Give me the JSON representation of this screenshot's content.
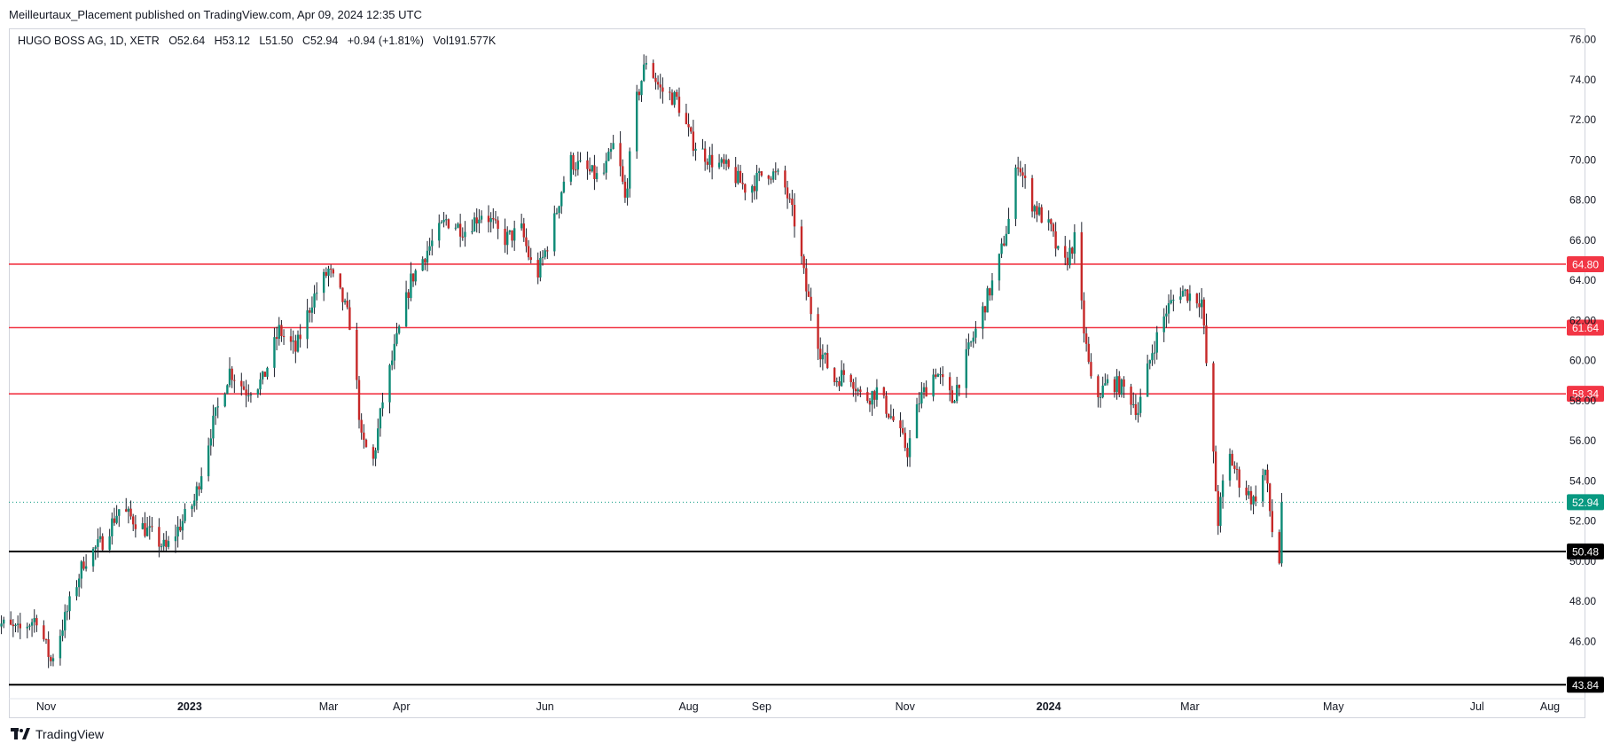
{
  "header": {
    "published": "Meilleurtaux_Placement published on TradingView.com, Apr 09, 2024 12:35 UTC"
  },
  "legend": {
    "symbol": "HUGO BOSS AG, 1D, XETR",
    "open": "O52.64",
    "high": "H53.12",
    "low": "L51.50",
    "close": "C52.94",
    "change": "+0.94 (+1.81%)",
    "volume": "Vol191.577K"
  },
  "footer": {
    "brand": "TradingView"
  },
  "colors": {
    "up": "#26a69a",
    "up_body": "#0c8a76",
    "down": "#ef5350",
    "down_body": "#c62828",
    "wick": "#1e222d",
    "level_line": "#f23645",
    "support_line": "#000000",
    "current_price": "#089981"
  },
  "chart_data": {
    "type": "candlestick",
    "symbol": "HUGO BOSS AG, 1D, XETR",
    "ylim": [
      43.5,
      76.2
    ],
    "yticks": [
      46,
      48,
      50,
      52,
      54,
      56,
      58,
      60,
      62,
      64,
      66,
      68,
      70,
      72,
      74,
      76
    ],
    "x_ticks": [
      {
        "label": "Nov",
        "date": "2022-11-01",
        "bold": false
      },
      {
        "label": "2023",
        "date": "2023-01-01",
        "bold": true
      },
      {
        "label": "Mar",
        "date": "2023-03-01",
        "bold": false
      },
      {
        "label": "Apr",
        "date": "2023-04-01",
        "bold": false
      },
      {
        "label": "Jun",
        "date": "2023-06-01",
        "bold": false
      },
      {
        "label": "Aug",
        "date": "2023-08-01",
        "bold": false
      },
      {
        "label": "Sep",
        "date": "2023-09-01",
        "bold": false
      },
      {
        "label": "Nov",
        "date": "2023-11-01",
        "bold": false
      },
      {
        "label": "2024",
        "date": "2024-01-01",
        "bold": true
      },
      {
        "label": "Mar",
        "date": "2024-03-01",
        "bold": false
      },
      {
        "label": "May",
        "date": "2024-05-01",
        "bold": false
      },
      {
        "label": "Jul",
        "date": "2024-07-01",
        "bold": false
      },
      {
        "label": "Aug",
        "date": "2024-08-01",
        "bold": false
      }
    ],
    "horizontal_levels": [
      {
        "value": 64.8,
        "label": "64.80",
        "kind": "resistance"
      },
      {
        "value": 61.64,
        "label": "61.64",
        "kind": "resistance"
      },
      {
        "value": 58.34,
        "label": "58.34",
        "kind": "resistance"
      },
      {
        "value": 50.48,
        "label": "50.48",
        "kind": "support"
      },
      {
        "value": 43.84,
        "label": "43.84",
        "kind": "support"
      }
    ],
    "current_price": {
      "value": 52.94,
      "label": "52.94"
    },
    "price_path": [
      [
        "2022-10-10",
        47.0
      ],
      [
        "2022-10-20",
        46.5
      ],
      [
        "2022-10-28",
        47.2
      ],
      [
        "2022-11-03",
        45.0
      ],
      [
        "2022-11-10",
        47.5
      ],
      [
        "2022-11-17",
        50.0
      ],
      [
        "2022-11-25",
        51.0
      ],
      [
        "2022-12-02",
        52.6
      ],
      [
        "2022-12-09",
        52.0
      ],
      [
        "2022-12-16",
        51.3
      ],
      [
        "2022-12-22",
        50.6
      ],
      [
        "2023-01-03",
        53.0
      ],
      [
        "2023-01-10",
        56.5
      ],
      [
        "2023-01-18",
        59.5
      ],
      [
        "2023-01-25",
        58.5
      ],
      [
        "2023-02-01",
        59.0
      ],
      [
        "2023-02-08",
        61.5
      ],
      [
        "2023-02-15",
        60.5
      ],
      [
        "2023-02-22",
        63.0
      ],
      [
        "2023-03-01",
        64.5
      ],
      [
        "2023-03-07",
        63.0
      ],
      [
        "2023-03-11",
        61.5
      ],
      [
        "2023-03-15",
        56.0
      ],
      [
        "2023-03-20",
        55.0
      ],
      [
        "2023-03-24",
        58.0
      ],
      [
        "2023-03-30",
        61.0
      ],
      [
        "2023-04-05",
        64.0
      ],
      [
        "2023-04-12",
        65.5
      ],
      [
        "2023-04-20",
        67.0
      ],
      [
        "2023-04-28",
        66.5
      ],
      [
        "2023-05-06",
        67.5
      ],
      [
        "2023-05-14",
        66.0
      ],
      [
        "2023-05-22",
        66.5
      ],
      [
        "2023-05-28",
        64.0
      ],
      [
        "2023-06-04",
        66.5
      ],
      [
        "2023-06-11",
        70.0
      ],
      [
        "2023-06-18",
        69.5
      ],
      [
        "2023-06-25",
        69.0
      ],
      [
        "2023-07-01",
        71.0
      ],
      [
        "2023-07-05",
        68.0
      ],
      [
        "2023-07-10",
        73.0
      ],
      [
        "2023-07-14",
        75.0
      ],
      [
        "2023-07-20",
        73.5
      ],
      [
        "2023-07-27",
        73.0
      ],
      [
        "2023-08-02",
        71.0
      ],
      [
        "2023-08-10",
        70.0
      ],
      [
        "2023-08-18",
        69.5
      ],
      [
        "2023-08-26",
        68.5
      ],
      [
        "2023-09-03",
        69.5
      ],
      [
        "2023-09-10",
        69.0
      ],
      [
        "2023-09-16",
        66.5
      ],
      [
        "2023-09-20",
        63.5
      ],
      [
        "2023-09-26",
        60.5
      ],
      [
        "2023-10-02",
        59.0
      ],
      [
        "2023-10-08",
        59.5
      ],
      [
        "2023-10-14",
        58.0
      ],
      [
        "2023-10-20",
        58.5
      ],
      [
        "2023-10-27",
        57.0
      ],
      [
        "2023-11-02",
        55.5
      ],
      [
        "2023-11-07",
        58.0
      ],
      [
        "2023-11-14",
        59.5
      ],
      [
        "2023-11-21",
        58.0
      ],
      [
        "2023-11-28",
        60.5
      ],
      [
        "2023-12-04",
        62.5
      ],
      [
        "2023-12-10",
        64.5
      ],
      [
        "2023-12-15",
        67.0
      ],
      [
        "2023-12-19",
        70.0
      ],
      [
        "2023-12-24",
        68.0
      ],
      [
        "2024-01-02",
        66.5
      ],
      [
        "2024-01-07",
        64.5
      ],
      [
        "2024-01-12",
        66.0
      ],
      [
        "2024-01-16",
        61.5
      ],
      [
        "2024-01-20",
        58.0
      ],
      [
        "2024-01-27",
        59.0
      ],
      [
        "2024-02-03",
        58.5
      ],
      [
        "2024-02-08",
        57.5
      ],
      [
        "2024-02-14",
        60.5
      ],
      [
        "2024-02-20",
        62.5
      ],
      [
        "2024-02-26",
        63.5
      ],
      [
        "2024-03-06",
        63.0
      ],
      [
        "2024-03-13",
        52.0
      ],
      [
        "2024-03-17",
        55.5
      ],
      [
        "2024-03-22",
        54.0
      ],
      [
        "2024-03-28",
        53.0
      ],
      [
        "2024-04-02",
        54.5
      ],
      [
        "2024-04-05",
        51.5
      ],
      [
        "2024-04-08",
        50.0
      ],
      [
        "2024-04-09",
        52.94
      ]
    ]
  }
}
